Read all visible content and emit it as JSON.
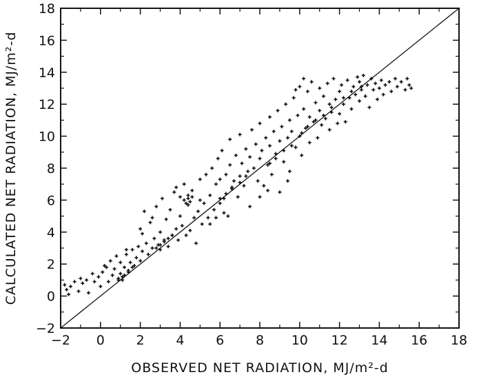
{
  "chart_data": {
    "type": "scatter",
    "title": "",
    "xlabel": "OBSERVED NET RADIATION, MJ/m²-d",
    "ylabel": "CALCULATED NET RADIATION, MJ/m²-d",
    "xlim": [
      -2,
      18
    ],
    "ylim": [
      -2,
      18
    ],
    "xticks": [
      "-2",
      "0",
      "2",
      "4",
      "6",
      "8",
      "10",
      "12",
      "14",
      "16",
      "18"
    ],
    "yticks": [
      "-2",
      "0",
      "2",
      "4",
      "6",
      "8",
      "10",
      "12",
      "14",
      "16",
      "18"
    ],
    "reference_line": {
      "x": [
        -2,
        18
      ],
      "y": [
        -2,
        18
      ]
    },
    "grid": false,
    "legend": "none",
    "series": [
      {
        "points": [
          [
            -1.8,
            0.7
          ],
          [
            -1.7,
            0.4
          ],
          [
            -1.6,
            0.1
          ],
          [
            -1.5,
            0.6
          ],
          [
            -1.3,
            0.9
          ],
          [
            -1.1,
            0.3
          ],
          [
            -1.0,
            1.1
          ],
          [
            -0.9,
            0.8
          ],
          [
            -0.7,
            1.0
          ],
          [
            -0.6,
            0.2
          ],
          [
            -0.4,
            1.4
          ],
          [
            -0.3,
            0.9
          ],
          [
            -0.1,
            1.2
          ],
          [
            0.0,
            0.6
          ],
          [
            0.1,
            1.5
          ],
          [
            0.3,
            1.8
          ],
          [
            0.4,
            0.9
          ],
          [
            0.5,
            2.2
          ],
          [
            0.6,
            1.3
          ],
          [
            0.7,
            1.7
          ],
          [
            0.8,
            2.5
          ],
          [
            0.9,
            1.0
          ],
          [
            1.0,
            1.4
          ],
          [
            1.0,
            2.1
          ],
          [
            1.1,
            1.2
          ],
          [
            1.2,
            1.8
          ],
          [
            1.3,
            2.6
          ],
          [
            1.4,
            1.6
          ],
          [
            1.5,
            2.1
          ],
          [
            1.6,
            2.9
          ],
          [
            1.7,
            1.9
          ],
          [
            1.8,
            2.4
          ],
          [
            1.9,
            3.1
          ],
          [
            2.0,
            2.2
          ],
          [
            2.0,
            4.2
          ],
          [
            2.1,
            2.8
          ],
          [
            2.2,
            5.3
          ],
          [
            2.3,
            3.3
          ],
          [
            2.4,
            2.6
          ],
          [
            2.5,
            4.6
          ],
          [
            2.6,
            3.0
          ],
          [
            2.7,
            3.6
          ],
          [
            2.8,
            5.6
          ],
          [
            2.9,
            3.2
          ],
          [
            3.0,
            4.0
          ],
          [
            3.0,
            2.9
          ],
          [
            3.1,
            6.1
          ],
          [
            3.2,
            3.5
          ],
          [
            3.3,
            4.8
          ],
          [
            3.4,
            3.1
          ],
          [
            3.5,
            5.4
          ],
          [
            3.6,
            3.8
          ],
          [
            3.7,
            6.5
          ],
          [
            3.8,
            4.2
          ],
          [
            3.9,
            3.5
          ],
          [
            4.0,
            5.0
          ],
          [
            4.0,
            6.2
          ],
          [
            4.1,
            4.4
          ],
          [
            4.2,
            7.0
          ],
          [
            4.3,
            3.8
          ],
          [
            4.4,
            5.7
          ],
          [
            4.4,
            6.1
          ],
          [
            4.5,
            4.1
          ],
          [
            4.6,
            6.6
          ],
          [
            4.7,
            4.9
          ],
          [
            4.8,
            3.3
          ],
          [
            4.9,
            5.3
          ],
          [
            5.0,
            6.0
          ],
          [
            5.0,
            7.3
          ],
          [
            5.1,
            4.5
          ],
          [
            5.2,
            5.8
          ],
          [
            5.3,
            7.6
          ],
          [
            5.4,
            4.9
          ],
          [
            5.5,
            6.3
          ],
          [
            5.6,
            8.0
          ],
          [
            5.7,
            5.4
          ],
          [
            5.8,
            7.0
          ],
          [
            5.9,
            8.6
          ],
          [
            6.0,
            5.8
          ],
          [
            6.0,
            7.3
          ],
          [
            6.1,
            9.1
          ],
          [
            6.2,
            6.1
          ],
          [
            6.3,
            7.6
          ],
          [
            6.4,
            5.0
          ],
          [
            6.5,
            8.2
          ],
          [
            6.5,
            9.8
          ],
          [
            6.6,
            6.8
          ],
          [
            6.7,
            7.2
          ],
          [
            6.8,
            8.8
          ],
          [
            6.9,
            6.2
          ],
          [
            7.0,
            7.5
          ],
          [
            7.0,
            10.1
          ],
          [
            7.1,
            8.3
          ],
          [
            7.2,
            6.9
          ],
          [
            7.3,
            9.2
          ],
          [
            7.4,
            7.8
          ],
          [
            7.5,
            8.7
          ],
          [
            7.5,
            5.6
          ],
          [
            7.6,
            10.4
          ],
          [
            7.7,
            8.0
          ],
          [
            7.8,
            9.5
          ],
          [
            7.9,
            7.2
          ],
          [
            8.0,
            8.6
          ],
          [
            8.0,
            10.8
          ],
          [
            8.1,
            9.1
          ],
          [
            8.2,
            6.9
          ],
          [
            8.3,
            9.9
          ],
          [
            8.4,
            8.2
          ],
          [
            8.5,
            11.2
          ],
          [
            8.5,
            9.4
          ],
          [
            8.6,
            7.6
          ],
          [
            8.7,
            10.3
          ],
          [
            8.8,
            8.9
          ],
          [
            8.9,
            11.6
          ],
          [
            9.0,
            9.7
          ],
          [
            9.0,
            6.5
          ],
          [
            9.1,
            10.6
          ],
          [
            9.2,
            8.4
          ],
          [
            9.3,
            12.0
          ],
          [
            9.4,
            9.9
          ],
          [
            9.5,
            11.0
          ],
          [
            9.5,
            7.8
          ],
          [
            9.6,
            10.3
          ],
          [
            9.7,
            12.4
          ],
          [
            9.8,
            9.3
          ],
          [
            9.9,
            11.3
          ],
          [
            10.0,
            10.0
          ],
          [
            10.0,
            13.1
          ],
          [
            10.1,
            8.8
          ],
          [
            10.2,
            11.7
          ],
          [
            10.3,
            10.5
          ],
          [
            10.4,
            12.8
          ],
          [
            10.5,
            9.6
          ],
          [
            10.5,
            11.2
          ],
          [
            10.6,
            13.4
          ],
          [
            10.7,
            10.9
          ],
          [
            10.8,
            12.1
          ],
          [
            10.9,
            9.9
          ],
          [
            11.0,
            11.6
          ],
          [
            11.0,
            13.0
          ],
          [
            11.1,
            10.7
          ],
          [
            11.2,
            12.5
          ],
          [
            11.3,
            11.1
          ],
          [
            11.4,
            13.3
          ],
          [
            11.5,
            10.4
          ],
          [
            11.5,
            12.0
          ],
          [
            11.6,
            11.5
          ],
          [
            11.7,
            13.6
          ],
          [
            11.8,
            12.3
          ],
          [
            11.9,
            10.8
          ],
          [
            12.0,
            12.8
          ],
          [
            12.0,
            11.4
          ],
          [
            12.1,
            13.2
          ],
          [
            12.2,
            12.0
          ],
          [
            12.3,
            10.9
          ],
          [
            12.4,
            13.5
          ],
          [
            12.5,
            12.4
          ],
          [
            12.6,
            11.7
          ],
          [
            12.7,
            13.1
          ],
          [
            12.8,
            12.6
          ],
          [
            12.9,
            13.7
          ],
          [
            13.0,
            12.2
          ],
          [
            13.0,
            13.4
          ],
          [
            13.1,
            12.9
          ],
          [
            13.2,
            13.8
          ],
          [
            13.3,
            12.5
          ],
          [
            13.4,
            13.2
          ],
          [
            13.5,
            11.8
          ],
          [
            13.6,
            13.6
          ],
          [
            13.7,
            12.9
          ],
          [
            13.8,
            13.3
          ],
          [
            13.9,
            12.3
          ],
          [
            14.0,
            13.0
          ],
          [
            14.1,
            13.5
          ],
          [
            14.2,
            12.6
          ],
          [
            14.3,
            13.2
          ],
          [
            14.5,
            13.4
          ],
          [
            14.6,
            12.8
          ],
          [
            14.8,
            13.6
          ],
          [
            14.9,
            13.1
          ],
          [
            15.1,
            13.4
          ],
          [
            15.3,
            12.9
          ],
          [
            15.4,
            13.6
          ],
          [
            15.5,
            13.2
          ],
          [
            15.6,
            13.0
          ],
          [
            4.2,
            6.0
          ],
          [
            4.4,
            6.3
          ],
          [
            4.6,
            6.2
          ],
          [
            4.3,
            5.8
          ],
          [
            4.5,
            5.9
          ],
          [
            3.0,
            3.2
          ],
          [
            3.2,
            3.4
          ],
          [
            3.4,
            3.6
          ],
          [
            3.6,
            3.8
          ],
          [
            2.8,
            3.0
          ],
          [
            1.2,
            1.3
          ],
          [
            1.4,
            1.5
          ],
          [
            0.9,
            1.1
          ],
          [
            1.1,
            1.0
          ],
          [
            1.6,
            1.8
          ],
          [
            6.0,
            6.1
          ],
          [
            6.3,
            6.4
          ],
          [
            6.6,
            6.7
          ],
          [
            7.0,
            7.1
          ],
          [
            7.3,
            7.5
          ],
          [
            8.5,
            8.3
          ],
          [
            8.8,
            8.6
          ],
          [
            9.2,
            9.1
          ],
          [
            9.6,
            9.4
          ],
          [
            10.1,
            10.2
          ],
          [
            10.4,
            10.6
          ],
          [
            10.8,
            11.0
          ],
          [
            11.2,
            11.3
          ],
          [
            11.6,
            11.8
          ],
          [
            12.2,
            12.4
          ],
          [
            12.6,
            12.8
          ],
          [
            13.1,
            13.1
          ],
          [
            5.5,
            4.5
          ],
          [
            5.8,
            4.9
          ],
          [
            6.2,
            5.2
          ],
          [
            8.0,
            6.2
          ],
          [
            8.4,
            6.6
          ],
          [
            9.4,
            7.2
          ],
          [
            3.8,
            6.8
          ],
          [
            2.6,
            4.9
          ],
          [
            2.1,
            3.9
          ],
          [
            1.3,
            2.9
          ],
          [
            0.2,
            1.9
          ],
          [
            9.8,
            12.9
          ],
          [
            10.2,
            13.6
          ]
        ]
      }
    ]
  }
}
